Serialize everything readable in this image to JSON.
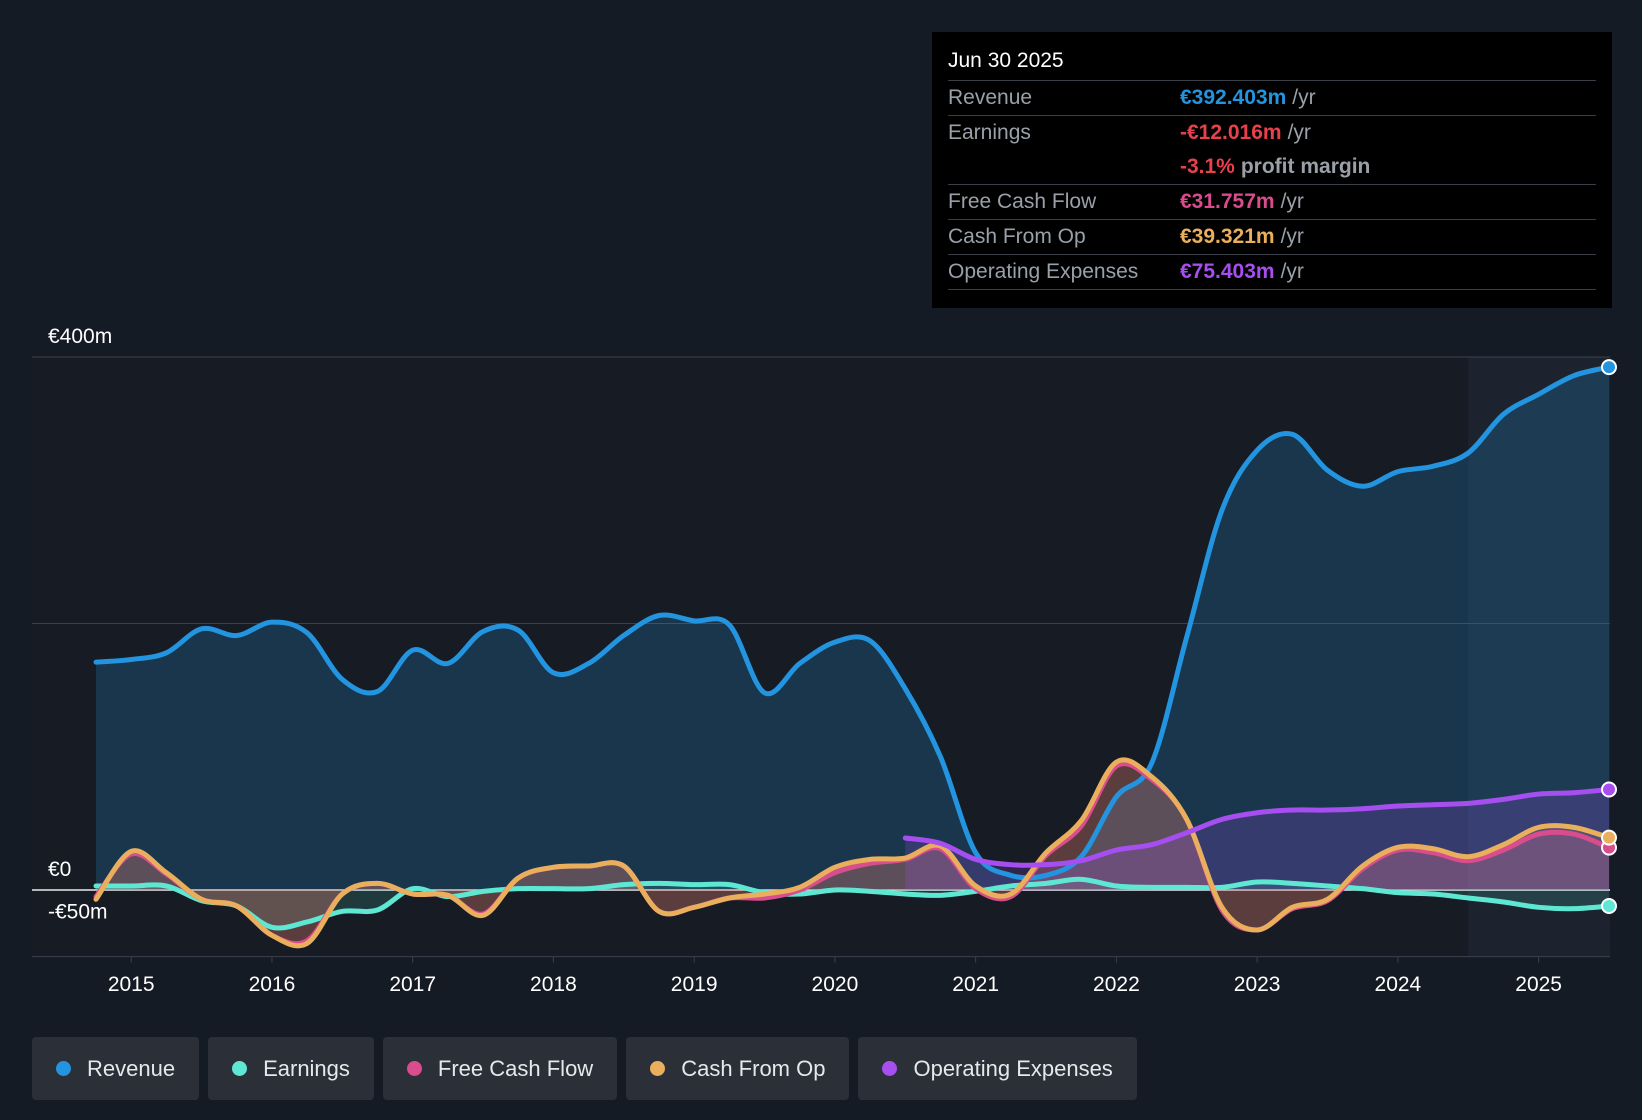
{
  "tooltip": {
    "date": "Jun 30 2025",
    "rows": [
      {
        "label": "Revenue",
        "value": "€392.403m",
        "unit": "/yr",
        "color": "#2394df"
      },
      {
        "label": "Earnings",
        "value": "-€12.016m",
        "unit": "/yr",
        "color": "#e9414b"
      },
      {
        "label": "",
        "value": "-3.1%",
        "unit": "profit margin",
        "color": "#e9414b"
      },
      {
        "label": "Free Cash Flow",
        "value": "€31.757m",
        "unit": "/yr",
        "color": "#d94c8d"
      },
      {
        "label": "Cash From Op",
        "value": "€39.321m",
        "unit": "/yr",
        "color": "#e9af5c"
      },
      {
        "label": "Operating Expenses",
        "value": "€75.403m",
        "unit": "/yr",
        "color": "#a64ef0"
      }
    ]
  },
  "legend": [
    {
      "label": "Revenue",
      "color": "#2394df"
    },
    {
      "label": "Earnings",
      "color": "#5ee8d3"
    },
    {
      "label": "Free Cash Flow",
      "color": "#d94c8d"
    },
    {
      "label": "Cash From Op",
      "color": "#e9af5c"
    },
    {
      "label": "Operating Expenses",
      "color": "#a64ef0"
    }
  ],
  "chart_data": {
    "type": "line",
    "title": "",
    "xlabel": "",
    "ylabel": "",
    "ylim": [
      -50,
      400
    ],
    "xlim": [
      2014.75,
      2025.5
    ],
    "y_tick_labels": [
      {
        "value": 400,
        "label": "€400m"
      },
      {
        "value": 0,
        "label": "€0"
      },
      {
        "value": -50,
        "label": "-€50m"
      }
    ],
    "x_ticks": [
      2015,
      2016,
      2017,
      2018,
      2019,
      2020,
      2021,
      2022,
      2023,
      2024,
      2025
    ],
    "x_tick_labels": [
      "2015",
      "2016",
      "2017",
      "2018",
      "2019",
      "2020",
      "2021",
      "2022",
      "2023",
      "2024",
      "2025"
    ],
    "forecast_start": 2024.5,
    "series": [
      {
        "name": "Revenue",
        "color": "#2394df",
        "fill": true,
        "points": [
          [
            2014.75,
            171
          ],
          [
            2015.0,
            173
          ],
          [
            2015.25,
            178
          ],
          [
            2015.5,
            196
          ],
          [
            2015.75,
            191
          ],
          [
            2016.0,
            201
          ],
          [
            2016.25,
            193
          ],
          [
            2016.5,
            158
          ],
          [
            2016.75,
            149
          ],
          [
            2017.0,
            180
          ],
          [
            2017.25,
            170
          ],
          [
            2017.5,
            194
          ],
          [
            2017.75,
            195
          ],
          [
            2018.0,
            163
          ],
          [
            2018.25,
            170
          ],
          [
            2018.5,
            191
          ],
          [
            2018.75,
            206
          ],
          [
            2019.0,
            202
          ],
          [
            2019.25,
            199
          ],
          [
            2019.5,
            148
          ],
          [
            2019.75,
            170
          ],
          [
            2020.0,
            186
          ],
          [
            2020.25,
            187
          ],
          [
            2020.5,
            151
          ],
          [
            2020.75,
            100
          ],
          [
            2021.0,
            28
          ],
          [
            2021.25,
            11
          ],
          [
            2021.5,
            11
          ],
          [
            2021.75,
            25
          ],
          [
            2022.0,
            70
          ],
          [
            2022.25,
            95
          ],
          [
            2022.5,
            190
          ],
          [
            2022.75,
            285
          ],
          [
            2023.0,
            330
          ],
          [
            2023.25,
            342
          ],
          [
            2023.5,
            315
          ],
          [
            2023.75,
            303
          ],
          [
            2024.0,
            314
          ],
          [
            2024.25,
            318
          ],
          [
            2024.5,
            328
          ],
          [
            2024.75,
            357
          ],
          [
            2025.0,
            372
          ],
          [
            2025.25,
            386
          ],
          [
            2025.5,
            392.4
          ]
        ]
      },
      {
        "name": "Earnings",
        "color": "#5ee8d3",
        "fill": true,
        "points": [
          [
            2014.75,
            3
          ],
          [
            2015.0,
            3
          ],
          [
            2015.25,
            3
          ],
          [
            2015.5,
            -8
          ],
          [
            2015.75,
            -12
          ],
          [
            2016.0,
            -28
          ],
          [
            2016.25,
            -24
          ],
          [
            2016.5,
            -16
          ],
          [
            2016.75,
            -15
          ],
          [
            2017.0,
            1
          ],
          [
            2017.25,
            -5
          ],
          [
            2017.5,
            -1
          ],
          [
            2017.75,
            1
          ],
          [
            2018.0,
            1
          ],
          [
            2018.25,
            1
          ],
          [
            2018.5,
            4
          ],
          [
            2018.75,
            5
          ],
          [
            2019.0,
            4
          ],
          [
            2019.25,
            4
          ],
          [
            2019.5,
            -2
          ],
          [
            2019.75,
            -3
          ],
          [
            2020.0,
            0
          ],
          [
            2020.25,
            -1
          ],
          [
            2020.5,
            -3
          ],
          [
            2020.75,
            -4
          ],
          [
            2021.0,
            -1
          ],
          [
            2021.25,
            3
          ],
          [
            2021.5,
            5
          ],
          [
            2021.75,
            8
          ],
          [
            2022.0,
            3
          ],
          [
            2022.25,
            2
          ],
          [
            2022.5,
            2
          ],
          [
            2022.75,
            2
          ],
          [
            2023.0,
            6
          ],
          [
            2023.25,
            5
          ],
          [
            2023.5,
            3
          ],
          [
            2023.75,
            1
          ],
          [
            2024.0,
            -2
          ],
          [
            2024.25,
            -3
          ],
          [
            2024.5,
            -6
          ],
          [
            2024.75,
            -9
          ],
          [
            2025.0,
            -13
          ],
          [
            2025.25,
            -14
          ],
          [
            2025.5,
            -12.0
          ]
        ]
      },
      {
        "name": "Free Cash Flow",
        "color": "#d94c8d",
        "fill": true,
        "points": [
          [
            2014.75,
            -5
          ],
          [
            2015.0,
            27
          ],
          [
            2015.25,
            12
          ],
          [
            2015.5,
            -7
          ],
          [
            2015.75,
            -12
          ],
          [
            2016.0,
            -34
          ],
          [
            2016.25,
            -38
          ],
          [
            2016.5,
            -3
          ],
          [
            2016.75,
            5
          ],
          [
            2017.0,
            -3
          ],
          [
            2017.25,
            -4
          ],
          [
            2017.5,
            -18
          ],
          [
            2017.75,
            9
          ],
          [
            2018.0,
            17
          ],
          [
            2018.25,
            18
          ],
          [
            2018.5,
            18
          ],
          [
            2018.75,
            -16
          ],
          [
            2019.0,
            -13
          ],
          [
            2019.25,
            -6
          ],
          [
            2019.5,
            -6
          ],
          [
            2019.75,
            0
          ],
          [
            2020.0,
            13
          ],
          [
            2020.25,
            20
          ],
          [
            2020.5,
            23
          ],
          [
            2020.75,
            31
          ],
          [
            2021.0,
            1
          ],
          [
            2021.25,
            -5
          ],
          [
            2021.5,
            26
          ],
          [
            2021.75,
            48
          ],
          [
            2022.0,
            93
          ],
          [
            2022.25,
            83
          ],
          [
            2022.5,
            53
          ],
          [
            2022.75,
            -15
          ],
          [
            2023.0,
            -30
          ],
          [
            2023.25,
            -14
          ],
          [
            2023.5,
            -8
          ],
          [
            2023.75,
            16
          ],
          [
            2024.0,
            30
          ],
          [
            2024.25,
            28
          ],
          [
            2024.5,
            22
          ],
          [
            2024.75,
            30
          ],
          [
            2025.0,
            42
          ],
          [
            2025.25,
            42
          ],
          [
            2025.5,
            31.8
          ]
        ]
      },
      {
        "name": "Cash From Op",
        "color": "#e9af5c",
        "fill": true,
        "points": [
          [
            2014.75,
            -7
          ],
          [
            2015.0,
            29
          ],
          [
            2015.25,
            13
          ],
          [
            2015.5,
            -7
          ],
          [
            2015.75,
            -12
          ],
          [
            2016.0,
            -34
          ],
          [
            2016.25,
            -40
          ],
          [
            2016.5,
            -3
          ],
          [
            2016.75,
            5
          ],
          [
            2017.0,
            -3
          ],
          [
            2017.25,
            -4
          ],
          [
            2017.5,
            -19
          ],
          [
            2017.75,
            9
          ],
          [
            2018.0,
            17
          ],
          [
            2018.25,
            18
          ],
          [
            2018.5,
            18
          ],
          [
            2018.75,
            -16
          ],
          [
            2019.0,
            -13
          ],
          [
            2019.25,
            -6
          ],
          [
            2019.5,
            -3
          ],
          [
            2019.75,
            2
          ],
          [
            2020.0,
            17
          ],
          [
            2020.25,
            23
          ],
          [
            2020.5,
            24
          ],
          [
            2020.75,
            33
          ],
          [
            2021.0,
            3
          ],
          [
            2021.25,
            -3
          ],
          [
            2021.5,
            28
          ],
          [
            2021.75,
            52
          ],
          [
            2022.0,
            96
          ],
          [
            2022.25,
            85
          ],
          [
            2022.5,
            53
          ],
          [
            2022.75,
            -13
          ],
          [
            2023.0,
            -30
          ],
          [
            2023.25,
            -13
          ],
          [
            2023.5,
            -7
          ],
          [
            2023.75,
            18
          ],
          [
            2024.0,
            32
          ],
          [
            2024.25,
            31
          ],
          [
            2024.5,
            25
          ],
          [
            2024.75,
            34
          ],
          [
            2025.0,
            47
          ],
          [
            2025.25,
            47
          ],
          [
            2025.5,
            39.3
          ]
        ]
      },
      {
        "name": "Operating Expenses",
        "color": "#a64ef0",
        "fill": true,
        "points": [
          [
            2020.5,
            39
          ],
          [
            2020.75,
            35
          ],
          [
            2021.0,
            23
          ],
          [
            2021.25,
            19
          ],
          [
            2021.5,
            19
          ],
          [
            2021.75,
            22
          ],
          [
            2022.0,
            30
          ],
          [
            2022.25,
            34
          ],
          [
            2022.5,
            43
          ],
          [
            2022.75,
            53
          ],
          [
            2023.0,
            58
          ],
          [
            2023.25,
            60
          ],
          [
            2023.5,
            60
          ],
          [
            2023.75,
            61
          ],
          [
            2024.0,
            63
          ],
          [
            2024.25,
            64
          ],
          [
            2024.5,
            65
          ],
          [
            2024.75,
            68
          ],
          [
            2025.0,
            72
          ],
          [
            2025.25,
            73
          ],
          [
            2025.5,
            75.4
          ]
        ]
      }
    ]
  }
}
